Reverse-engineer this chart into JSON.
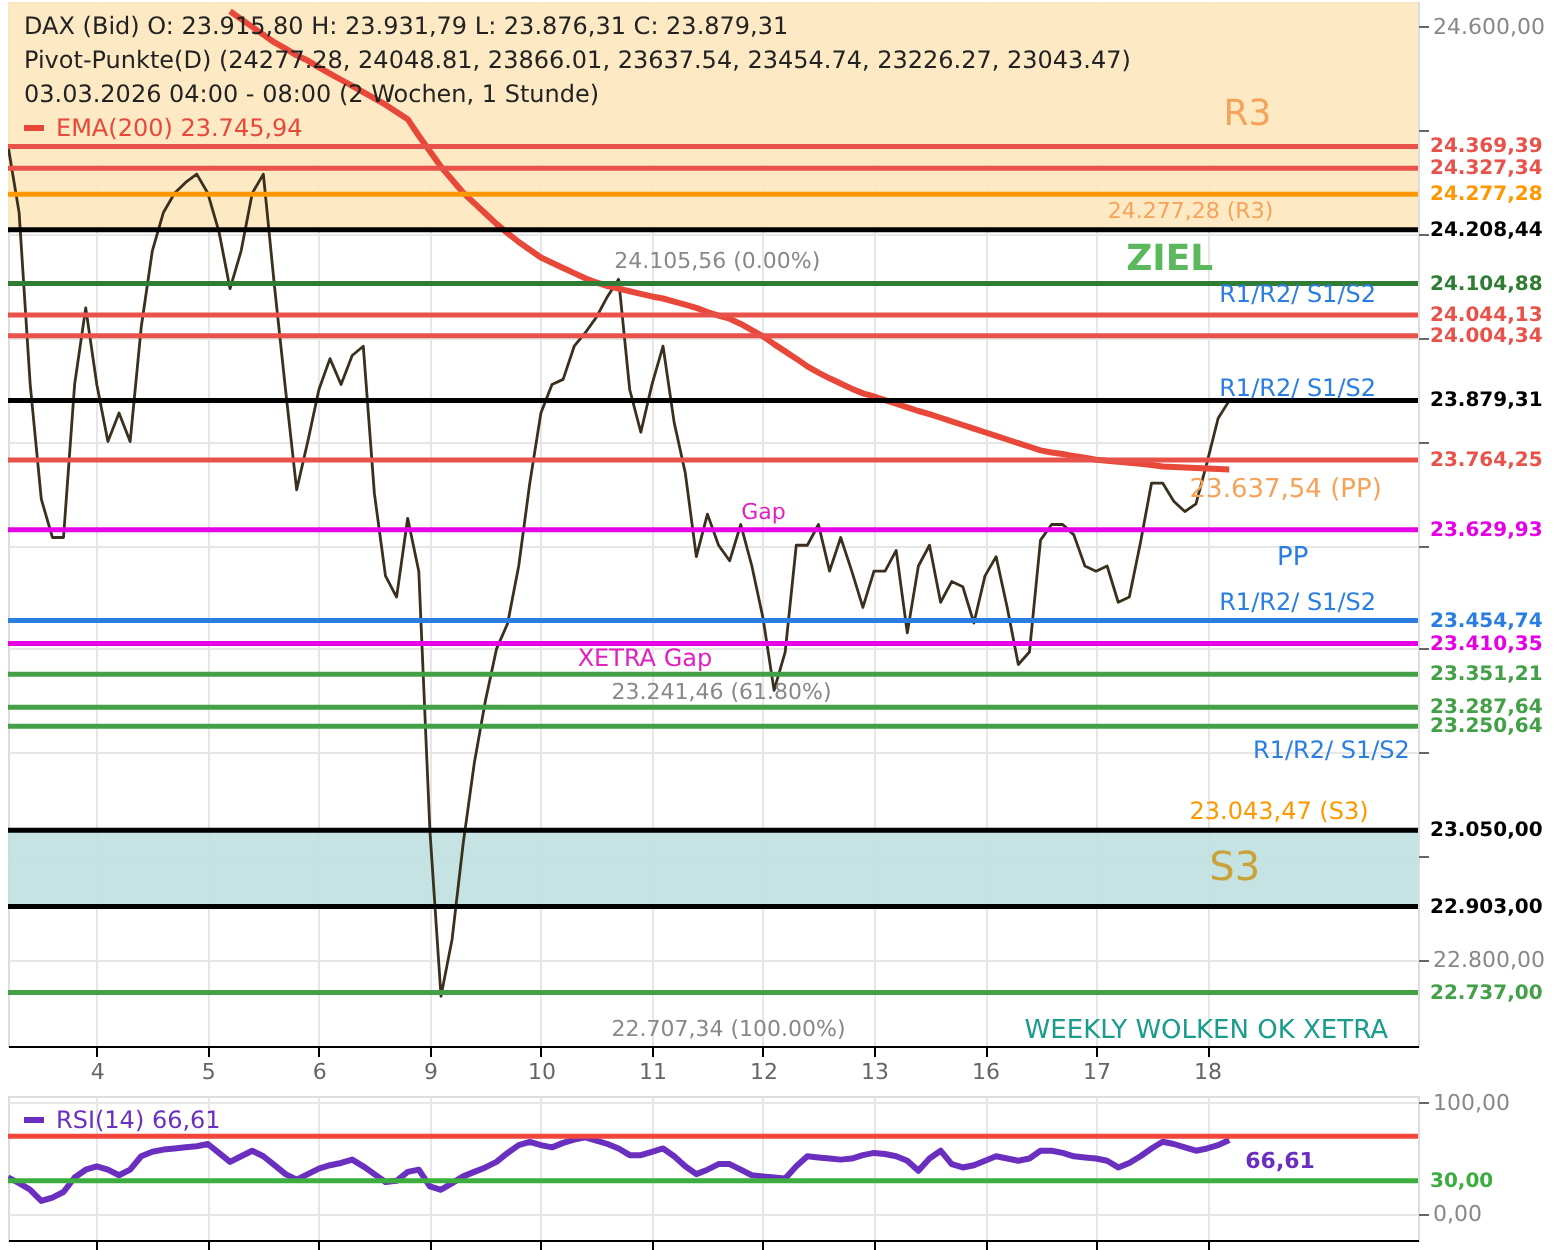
{
  "chart_data": [
    {
      "type": "line",
      "legend": "top left",
      "grid": true,
      "categories": [
        null,
        null,
        null,
        null,
        null,
        null,
        null,
        null,
        "4",
        null,
        null,
        null,
        null,
        null,
        null,
        null,
        null,
        null,
        "5",
        null,
        null,
        null,
        null,
        null,
        null,
        null,
        null,
        null,
        "6",
        null,
        null,
        null,
        null,
        null,
        null,
        null,
        null,
        null,
        "9",
        null,
        null,
        null,
        null,
        null,
        null,
        null,
        null,
        null,
        "10",
        null,
        null,
        null,
        null,
        null,
        null,
        null,
        null,
        null,
        "11",
        null,
        null,
        null,
        null,
        null,
        null,
        null,
        null,
        null,
        "12",
        null,
        null,
        null,
        null,
        null,
        null,
        null,
        null,
        null,
        "13",
        null,
        null,
        null,
        null,
        null,
        null,
        null,
        null,
        null,
        "16",
        null,
        null,
        null,
        null,
        null,
        null,
        null,
        null,
        null,
        "17",
        null,
        null,
        null,
        null,
        null,
        null,
        null,
        null,
        null,
        "18",
        null,
        null,
        null,
        null,
        null,
        null,
        null,
        null,
        null,
        null,
        null,
        null,
        null,
        null,
        null,
        null,
        null,
        null,
        null
      ],
      "ylim": [
        22634,
        24648
      ],
      "yticks": [
        {
          "value": 24600,
          "label": "24.600,00"
        },
        {
          "value": 24400,
          "label": null
        },
        {
          "value": 24200,
          "label": null
        },
        {
          "value": 24000,
          "label": null
        },
        {
          "value": 23800,
          "label": null
        },
        {
          "value": 23600,
          "label": null
        },
        {
          "value": 23400,
          "label": null
        },
        {
          "value": 23200,
          "label": null
        },
        {
          "value": 23000,
          "label": null
        },
        {
          "value": 22800,
          "label": "22.800,00"
        }
      ],
      "annotations": [
        "DAX (Bid)  O: 23.915,80  H: 23.931,79  L: 23.876,31  C: 23.879,31",
        "Pivot-Punkte(D)  (24277.28,  24048.81,  23866.01,  23637.54,  23454.74,  23226.27,  23043.47)",
        "03.03.2026 04:00 - 08:00  (2 Wochen, 1 Stunde)",
        "ZIEL",
        "24.105,56 (0.00%)",
        "23.241,46 (61.80%)",
        "22.707,34 (100.00%)",
        "XETRA Gap",
        "Gap",
        "R1/R2/ S1/S2",
        "R1/R2/ S1/S2",
        "R1/R2/ S1/S2",
        "R1/R2/ S1/S2",
        "23.637,54 (PP)",
        "PP",
        "24.277,28 (R3)",
        "R3",
        "23.043,47 (S3)",
        "WEEKLY WOLKEN OK XETRA"
      ],
      "bands": [
        {
          "axis": "y",
          "from": 24208.44,
          "to": 24648,
          "color": "#fde7bd"
        },
        {
          "axis": "y",
          "from": 22903,
          "to": 23050,
          "color": "#bfe0df",
          "label": "S3"
        }
      ],
      "ref_lines": [
        {
          "axis": "y",
          "value": 24369.39,
          "label": "24.369,39",
          "color": "#e8524a"
        },
        {
          "axis": "y",
          "value": 24327.34,
          "label": "24.327,34",
          "color": "#e8524a"
        },
        {
          "axis": "y",
          "value": 24277.28,
          "label": "24.277,28",
          "color": "#ff9800"
        },
        {
          "axis": "y",
          "value": 24208.44,
          "label": "24.208,44",
          "color": "#000000"
        },
        {
          "axis": "y",
          "value": 24104.88,
          "label": "24.104,88",
          "color": "#2e7d32"
        },
        {
          "axis": "y",
          "value": 24044.13,
          "label": "24.044,13",
          "color": "#e8524a"
        },
        {
          "axis": "y",
          "value": 24004.34,
          "label": "24.004,34",
          "color": "#e8524a"
        },
        {
          "axis": "y",
          "value": 23879.31,
          "label": "23.879,31",
          "color": "#000000"
        },
        {
          "axis": "y",
          "value": 23764.25,
          "label": "23.764,25",
          "color": "#e8524a"
        },
        {
          "axis": "y",
          "value": 23629.93,
          "label": "23.629,93",
          "color": "#e600e6"
        },
        {
          "axis": "y",
          "value": 23454.74,
          "label": "23.454,74",
          "color": "#2a7de1"
        },
        {
          "axis": "y",
          "value": 23410.35,
          "label": "23.410,35",
          "color": "#e600e6"
        },
        {
          "axis": "y",
          "value": 23351.21,
          "label": "23.351,21",
          "color": "#43a047"
        },
        {
          "axis": "y",
          "value": 23287.64,
          "label": "23.287,64",
          "color": "#43a047"
        },
        {
          "axis": "y",
          "value": 23250.64,
          "label": "23.250,64",
          "color": "#43a047"
        },
        {
          "axis": "y",
          "value": 23050.0,
          "label": "23.050,00",
          "color": "#000000"
        },
        {
          "axis": "y",
          "value": 22903.0,
          "label": "22.903,00",
          "color": "#000000"
        },
        {
          "axis": "y",
          "value": 22737.0,
          "label": "22.737,00",
          "color": "#43a047"
        }
      ],
      "series": [
        {
          "color": "#3b2f1e",
          "values": [
            24371,
            24242,
            23910,
            23689,
            23615,
            23615,
            23910,
            24058,
            23910,
            23800,
            23855,
            23800,
            24021,
            24168,
            24242,
            24279,
            24300,
            24316,
            24279,
            24205,
            24095,
            24168,
            24279,
            24316,
            24100,
            23900,
            23707,
            23800,
            23900,
            23960,
            23910,
            23966,
            23984,
            23700,
            23541,
            23500,
            23652,
            23550,
            23050,
            22730,
            22840,
            23025,
            23180,
            23300,
            23400,
            23449,
            23560,
            23720,
            23855,
            23910,
            23920,
            23984,
            24010,
            24040,
            24080,
            24113,
            23900,
            23818,
            23910,
            23984,
            23837,
            23740,
            23578,
            23660,
            23600,
            23570,
            23640,
            23560,
            23460,
            23320,
            23394,
            23600,
            23600,
            23640,
            23550,
            23615,
            23550,
            23480,
            23550,
            23550,
            23590,
            23431,
            23560,
            23600,
            23490,
            23530,
            23520,
            23450,
            23541,
            23578,
            23480,
            23370,
            23394,
            23610,
            23640,
            23640,
            23620,
            23560,
            23550,
            23560,
            23490,
            23500,
            23605,
            23720,
            23720,
            23685,
            23665,
            23680,
            23760,
            23845,
            23879,
            null,
            null,
            null,
            null,
            null,
            null,
            null,
            null,
            null,
            null,
            null,
            null,
            null,
            null,
            null,
            null,
            null
          ]
        },
        {
          "name": "EMA(200)  23.745,94",
          "color": "#e8483a",
          "values": [
            null,
            null,
            null,
            null,
            null,
            null,
            null,
            null,
            null,
            null,
            null,
            null,
            null,
            null,
            null,
            null,
            null,
            null,
            null,
            null,
            24630,
            24615,
            24600,
            24585,
            24570,
            24558,
            24545,
            24535,
            24522,
            24510,
            24498,
            24486,
            24474,
            24462,
            24450,
            24436,
            24422,
            24390,
            24360,
            24330,
            24305,
            24280,
            24260,
            24240,
            24220,
            24202,
            24185,
            24170,
            24155,
            24145,
            24135,
            24125,
            24115,
            24107,
            24100,
            24095,
            24090,
            24085,
            24080,
            24076,
            24070,
            24064,
            24058,
            24050,
            24043,
            24037,
            24027,
            24015,
            24003,
            23988,
            23974,
            23960,
            23945,
            23933,
            23922,
            23912,
            23902,
            23893,
            23887,
            23880,
            23873,
            23866,
            23859,
            23853,
            23846,
            23839,
            23832,
            23825,
            23818,
            23811,
            23804,
            23797,
            23790,
            23783,
            23779,
            23776,
            23772,
            23769,
            23765,
            23763,
            23761,
            23759,
            23757,
            23755,
            23752,
            23751,
            23750,
            23749,
            23748,
            23747,
            23746,
            null,
            null,
            null,
            null,
            null,
            null,
            null,
            null,
            null,
            null,
            null,
            null,
            null,
            null,
            null,
            null,
            null
          ]
        }
      ]
    },
    {
      "type": "line",
      "legend": "top left",
      "grid": true,
      "tick_labels": "y",
      "categories": [
        null,
        null,
        null,
        null,
        null,
        null,
        null,
        null,
        "4",
        null,
        null,
        null,
        null,
        null,
        null,
        null,
        null,
        null,
        "5",
        null,
        null,
        null,
        null,
        null,
        null,
        null,
        null,
        null,
        "6",
        null,
        null,
        null,
        null,
        null,
        null,
        null,
        null,
        null,
        "9",
        null,
        null,
        null,
        null,
        null,
        null,
        null,
        null,
        null,
        "10",
        null,
        null,
        null,
        null,
        null,
        null,
        null,
        null,
        null,
        "11",
        null,
        null,
        null,
        null,
        null,
        null,
        null,
        null,
        null,
        "12",
        null,
        null,
        null,
        null,
        null,
        null,
        null,
        null,
        null,
        "13",
        null,
        null,
        null,
        null,
        null,
        null,
        null,
        null,
        null,
        "16",
        null,
        null,
        null,
        null,
        null,
        null,
        null,
        null,
        null,
        "17",
        null,
        null,
        null,
        null,
        null,
        null,
        null,
        null,
        null,
        "18",
        null,
        null,
        null,
        null,
        null,
        null,
        null,
        null,
        null,
        null,
        null,
        null,
        null,
        null,
        null,
        null,
        null,
        null,
        null
      ],
      "ylim": [
        -23,
        106
      ],
      "yticks": [
        {
          "value": 100,
          "label": "100,00"
        },
        {
          "value": 0,
          "label": "0,00"
        }
      ],
      "ref_lines": [
        {
          "axis": "y",
          "value": 70,
          "color": "#f0473a"
        },
        {
          "axis": "y",
          "value": 30,
          "label": "30,00",
          "color": "#3cae3f"
        }
      ],
      "series": [
        {
          "name": "RSI(14)  66,61",
          "color": "#6a2fbf",
          "values": [
            33,
            28,
            22,
            12,
            15,
            20,
            33,
            40,
            43,
            40,
            35,
            40,
            52,
            56,
            58,
            59,
            60,
            61,
            63,
            55,
            47,
            52,
            57,
            52,
            44,
            36,
            31,
            36,
            41,
            44,
            46,
            49,
            43,
            36,
            29,
            30,
            38,
            40,
            25,
            22,
            28,
            34,
            38,
            42,
            47,
            55,
            62,
            65,
            62,
            60,
            64,
            67,
            69,
            66,
            63,
            59,
            53,
            53,
            56,
            59,
            52,
            43,
            36,
            40,
            45,
            45,
            40,
            35,
            34,
            33,
            32,
            43,
            52,
            51,
            50,
            49,
            50,
            53,
            55,
            54,
            52,
            48,
            39,
            50,
            57,
            45,
            42,
            44,
            48,
            52,
            50,
            48,
            50,
            57,
            57,
            55,
            52,
            51,
            50,
            48,
            42,
            46,
            52,
            59,
            65,
            63,
            60,
            57,
            59,
            62,
            66.61,
            null,
            null,
            null,
            null,
            null,
            null,
            null,
            null,
            null,
            null,
            null,
            null,
            null,
            null,
            null,
            null,
            null
          ],
          "value_labels": [
            null,
            null,
            null,
            null,
            null,
            null,
            null,
            null,
            null,
            null,
            null,
            null,
            null,
            null,
            null,
            null,
            null,
            null,
            null,
            null,
            null,
            null,
            null,
            null,
            null,
            null,
            null,
            null,
            null,
            null,
            null,
            null,
            null,
            null,
            null,
            null,
            null,
            null,
            null,
            null,
            null,
            null,
            null,
            null,
            null,
            null,
            null,
            null,
            null,
            null,
            null,
            null,
            null,
            null,
            null,
            null,
            null,
            null,
            null,
            null,
            null,
            null,
            null,
            null,
            null,
            null,
            null,
            null,
            null,
            null,
            null,
            null,
            null,
            null,
            null,
            null,
            null,
            null,
            null,
            null,
            null,
            null,
            null,
            null,
            null,
            null,
            null,
            null,
            null,
            null,
            null,
            null,
            null,
            null,
            null,
            null,
            null,
            null,
            null,
            null,
            null,
            null,
            null,
            null,
            null,
            null,
            null,
            null,
            null,
            null,
            "66,61",
            null,
            null,
            null,
            null,
            null,
            null,
            null,
            null,
            null,
            null,
            null,
            null,
            null,
            null,
            null,
            null,
            null
          ]
        }
      ]
    }
  ]
}
